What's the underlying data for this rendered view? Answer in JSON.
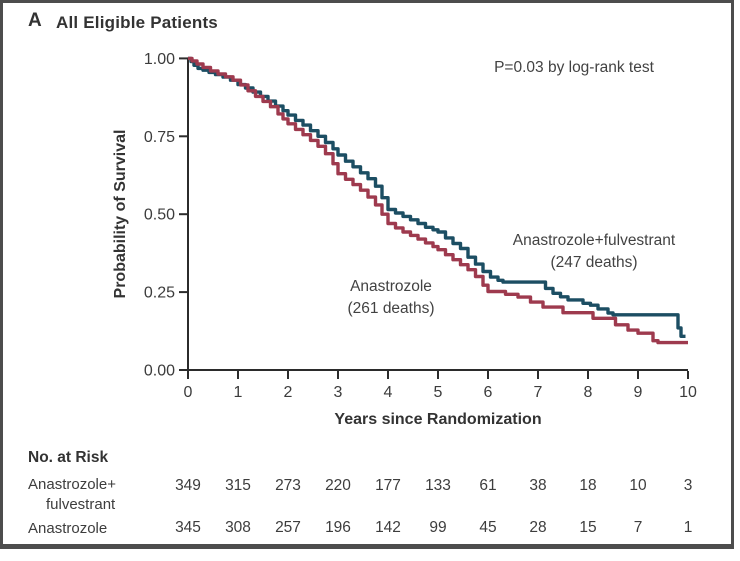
{
  "panel": {
    "letter": "A",
    "title": "All Eligible Patients"
  },
  "chart_data": {
    "type": "line",
    "subtype": "kaplan-meier-step",
    "title": "All Eligible Patients",
    "xlabel": "Years since Randomization",
    "ylabel": "Probability of Survival",
    "xlim": [
      0,
      10
    ],
    "ylim": [
      0.0,
      1.0
    ],
    "xticks": [
      "0",
      "1",
      "2",
      "3",
      "4",
      "5",
      "6",
      "7",
      "8",
      "9",
      "10"
    ],
    "yticks": [
      "1.00",
      "0.75",
      "0.50",
      "0.25",
      "0.00"
    ],
    "grid": false,
    "legend_position": "inline-labels",
    "annotations": {
      "pvalue": "P=0.03 by log-rank test"
    },
    "series": [
      {
        "name": "Anastrozole+fulvestrant",
        "deaths": 247,
        "color": "#1c4e63",
        "label": [
          "Anastrozole+fulvestrant",
          "(247 deaths)"
        ],
        "points": [
          [
            0,
            1.0
          ],
          [
            0.06,
            0.99
          ],
          [
            0.12,
            0.978
          ],
          [
            0.2,
            0.968
          ],
          [
            0.3,
            0.962
          ],
          [
            0.42,
            0.955
          ],
          [
            0.55,
            0.948
          ],
          [
            0.7,
            0.94
          ],
          [
            0.85,
            0.93
          ],
          [
            1.0,
            0.916
          ],
          [
            1.15,
            0.905
          ],
          [
            1.3,
            0.892
          ],
          [
            1.45,
            0.878
          ],
          [
            1.6,
            0.863
          ],
          [
            1.75,
            0.847
          ],
          [
            1.9,
            0.832
          ],
          [
            2.0,
            0.818
          ],
          [
            2.15,
            0.801
          ],
          [
            2.3,
            0.786
          ],
          [
            2.45,
            0.768
          ],
          [
            2.6,
            0.75
          ],
          [
            2.75,
            0.73
          ],
          [
            2.9,
            0.71
          ],
          [
            3.0,
            0.69
          ],
          [
            3.15,
            0.67
          ],
          [
            3.3,
            0.652
          ],
          [
            3.45,
            0.633
          ],
          [
            3.6,
            0.614
          ],
          [
            3.75,
            0.59
          ],
          [
            3.88,
            0.553
          ],
          [
            4.0,
            0.515
          ],
          [
            4.15,
            0.504
          ],
          [
            4.3,
            0.493
          ],
          [
            4.45,
            0.482
          ],
          [
            4.6,
            0.47
          ],
          [
            4.75,
            0.458
          ],
          [
            4.9,
            0.45
          ],
          [
            5.0,
            0.443
          ],
          [
            5.15,
            0.424
          ],
          [
            5.3,
            0.406
          ],
          [
            5.45,
            0.39
          ],
          [
            5.6,
            0.362
          ],
          [
            5.75,
            0.34
          ],
          [
            5.9,
            0.316
          ],
          [
            6.05,
            0.298
          ],
          [
            6.2,
            0.288
          ],
          [
            6.3,
            0.282
          ],
          [
            7.05,
            0.282
          ],
          [
            7.15,
            0.262
          ],
          [
            7.3,
            0.246
          ],
          [
            7.45,
            0.235
          ],
          [
            7.6,
            0.225
          ],
          [
            7.9,
            0.214
          ],
          [
            8.05,
            0.208
          ],
          [
            8.2,
            0.196
          ],
          [
            8.4,
            0.183
          ],
          [
            8.5,
            0.177
          ],
          [
            9.75,
            0.177
          ],
          [
            9.8,
            0.135
          ],
          [
            9.86,
            0.108
          ],
          [
            9.95,
            0.108
          ]
        ]
      },
      {
        "name": "Anastrozole",
        "deaths": 261,
        "color": "#9e3a4e",
        "label": [
          "Anastrozole",
          "(261 deaths)"
        ],
        "points": [
          [
            0,
            1.0
          ],
          [
            0.08,
            0.992
          ],
          [
            0.18,
            0.982
          ],
          [
            0.3,
            0.971
          ],
          [
            0.45,
            0.96
          ],
          [
            0.6,
            0.95
          ],
          [
            0.75,
            0.941
          ],
          [
            0.9,
            0.93
          ],
          [
            1.05,
            0.915
          ],
          [
            1.2,
            0.896
          ],
          [
            1.35,
            0.878
          ],
          [
            1.5,
            0.862
          ],
          [
            1.65,
            0.845
          ],
          [
            1.8,
            0.822
          ],
          [
            1.9,
            0.806
          ],
          [
            2.0,
            0.79
          ],
          [
            2.15,
            0.772
          ],
          [
            2.3,
            0.755
          ],
          [
            2.45,
            0.737
          ],
          [
            2.6,
            0.718
          ],
          [
            2.75,
            0.694
          ],
          [
            2.9,
            0.662
          ],
          [
            3.0,
            0.63
          ],
          [
            3.15,
            0.612
          ],
          [
            3.3,
            0.595
          ],
          [
            3.45,
            0.577
          ],
          [
            3.6,
            0.555
          ],
          [
            3.75,
            0.53
          ],
          [
            3.88,
            0.5
          ],
          [
            4.0,
            0.47
          ],
          [
            4.15,
            0.456
          ],
          [
            4.3,
            0.443
          ],
          [
            4.45,
            0.432
          ],
          [
            4.6,
            0.42
          ],
          [
            4.75,
            0.408
          ],
          [
            4.9,
            0.396
          ],
          [
            5.0,
            0.386
          ],
          [
            5.15,
            0.37
          ],
          [
            5.3,
            0.354
          ],
          [
            5.45,
            0.338
          ],
          [
            5.6,
            0.322
          ],
          [
            5.75,
            0.3
          ],
          [
            5.9,
            0.272
          ],
          [
            6.0,
            0.252
          ],
          [
            6.35,
            0.243
          ],
          [
            6.6,
            0.234
          ],
          [
            6.85,
            0.218
          ],
          [
            7.1,
            0.202
          ],
          [
            7.5,
            0.184
          ],
          [
            8.1,
            0.166
          ],
          [
            8.55,
            0.145
          ],
          [
            8.8,
            0.128
          ],
          [
            9.0,
            0.118
          ],
          [
            9.3,
            0.094
          ],
          [
            9.4,
            0.088
          ],
          [
            10.0,
            0.088
          ]
        ]
      }
    ]
  },
  "risk_table": {
    "title": "No. at Risk",
    "rows": [
      {
        "label_lines": [
          "Anastrozole+",
          "fulvestrant"
        ],
        "values": [
          "349",
          "315",
          "273",
          "220",
          "177",
          "133",
          "61",
          "38",
          "18",
          "10",
          "3"
        ]
      },
      {
        "label_lines": [
          "Anastrozole"
        ],
        "values": [
          "345",
          "308",
          "257",
          "196",
          "142",
          "99",
          "45",
          "28",
          "15",
          "7",
          "1"
        ]
      }
    ]
  },
  "colors": {
    "axis": "#2b2b2b",
    "text": "#3c3c3c",
    "border": "#4d4d4d",
    "series_blue": "#1c4e63",
    "series_red": "#9e3a4e"
  }
}
